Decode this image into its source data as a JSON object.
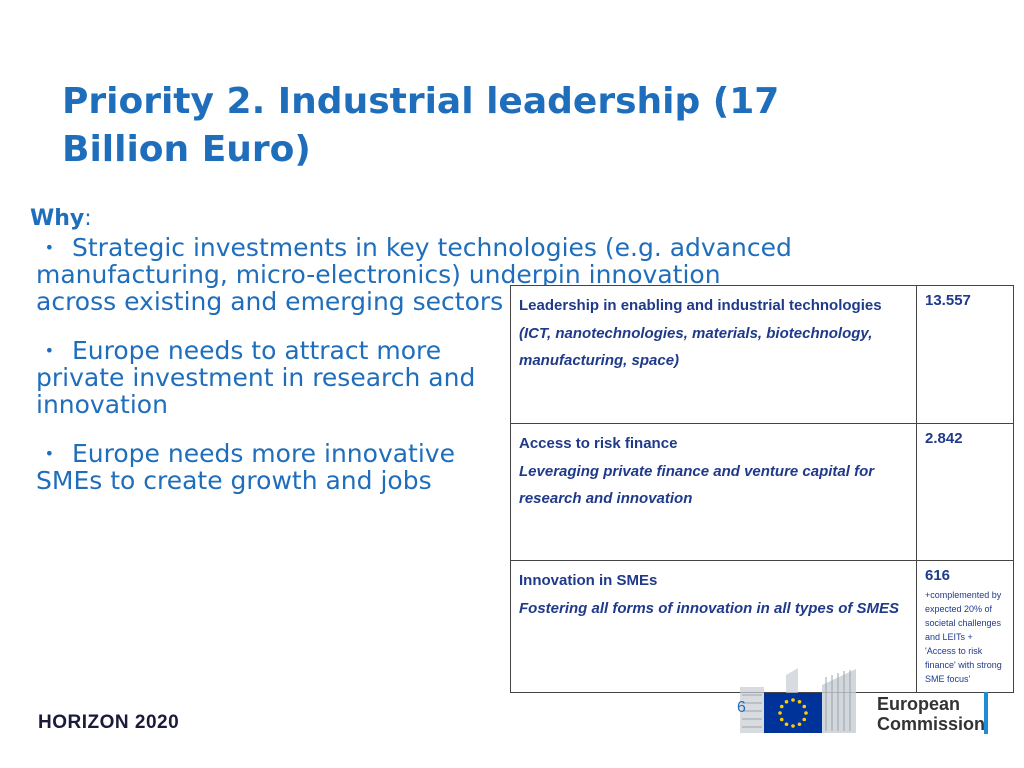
{
  "slide": {
    "title": "Priority 2. Industrial leadership (17 Billion Euro)",
    "why_label": "Why",
    "why_colon": ":",
    "bullets": [
      "Strategic investments in key technologies (e.g. advanced manufacturing, micro-electronics) underpin innovation across existing and emerging sectors",
      "Europe needs to attract more private investment in research and innovation",
      "Europe needs more innovative SMEs to create growth and jobs"
    ],
    "bullet_marker": "•"
  },
  "table": {
    "rows": [
      {
        "name": "Leadership in enabling and industrial technologies",
        "sub": "(ICT, nanotechnologies, materials, biotechnology, manufacturing, space)",
        "amount": "13.557",
        "note": ""
      },
      {
        "name": "Access to risk finance",
        "sub": "Leveraging private finance and venture capital for research and innovation",
        "amount": "2.842",
        "note": ""
      },
      {
        "name": "Innovation in SMEs",
        "sub": "Fostering all forms of innovation in all types of SMES",
        "amount": "616",
        "note": "+complemented by expected 20% of societal challenges and LEITs + 'Access to risk finance' with strong SME focus'"
      }
    ]
  },
  "footer": {
    "program": "HORIZON 2020",
    "page_number": "6",
    "logo_line1": "European",
    "logo_line2": "Commission"
  },
  "colors": {
    "accent": "#1f6ebc",
    "table_text": "#1f3a8a",
    "eu_blue": "#003399",
    "eu_star": "#ffcc00"
  }
}
